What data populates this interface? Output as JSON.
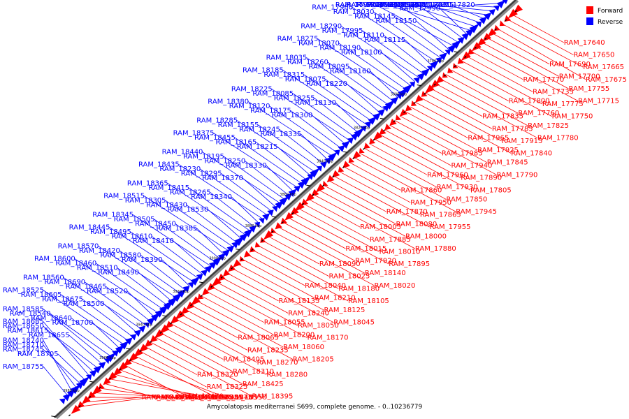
{
  "caption": "Amycolatopsis mediterranei S699, complete genome. - 0..10236779",
  "legend": [
    {
      "label": "Forward",
      "color": "#ff0000"
    },
    {
      "label": "Reverse",
      "color": "#0000ff"
    }
  ],
  "colors": {
    "forward": "#ff0000",
    "reverse": "#0000ff",
    "axis": "#555555",
    "tick": "#000000"
  },
  "ticks": [
    {
      "label": "3780 kbp",
      "pos": 0.125
    },
    {
      "label": "3800 kbp",
      "pos": 0.205
    },
    {
      "label": "3820 kbp",
      "pos": 0.285
    },
    {
      "label": "3840 kbp",
      "pos": 0.365
    },
    {
      "label": "3860 kbp",
      "pos": 0.445
    },
    {
      "label": "3880 kbp",
      "pos": 0.52
    },
    {
      "label": "3900 kbp",
      "pos": 0.598
    },
    {
      "label": "3920 kbp",
      "pos": 0.677
    },
    {
      "label": "3940 kbp",
      "pos": 0.757
    },
    {
      "label": "3960 kbp",
      "pos": 0.836
    },
    {
      "label": "3980 kbp",
      "pos": 0.915
    },
    {
      "label": "4000 kbp",
      "pos": 0.998
    }
  ],
  "reverse_labels": [
    "RAM_17820",
    "RAM_17855",
    "RAM_17765",
    "RAM_17815",
    "RAM_17830",
    "RAM_17905",
    "RAM_17875",
    "RAM_17910",
    "RAM_17990",
    "RAM_17975",
    "RAM_17935",
    "RAM_17970",
    "RAM_18150",
    "RAM_18145",
    "RAM_18030",
    "RAM_17980",
    "RAM_18115",
    "RAM_18110",
    "RAM_17995",
    "RAM_18290",
    "RAM_18100",
    "RAM_18190",
    "RAM_18070",
    "RAM_18275",
    "RAM_18160",
    "RAM_18095",
    "RAM_18260",
    "RAM_18035",
    "RAM_18220",
    "RAM_18075",
    "RAM_18315",
    "RAM_18185",
    "RAM_18130",
    "RAM_18255",
    "RAM_18085",
    "RAM_18225",
    "RAM_18300",
    "RAM_18175",
    "RAM_18120",
    "RAM_18380",
    "RAM_18335",
    "RAM_18245",
    "RAM_18155",
    "RAM_18285",
    "RAM_18215",
    "RAM_18165",
    "RAM_18455",
    "RAM_18375",
    "RAM_18330",
    "RAM_18250",
    "RAM_18195",
    "RAM_18440",
    "RAM_18370",
    "RAM_18295",
    "RAM_18230",
    "RAM_18435",
    "RAM_18340",
    "RAM_18265",
    "RAM_18415",
    "RAM_18365",
    "RAM_18530",
    "RAM_18430",
    "RAM_18305",
    "RAM_18515",
    "RAM_18385",
    "RAM_18450",
    "RAM_18505",
    "RAM_18345",
    "RAM_18410",
    "RAM_18610",
    "RAM_18495",
    "RAM_18445",
    "RAM_18390",
    "RAM_18580",
    "RAM_18420",
    "RAM_18570",
    "RAM_18490",
    "RAM_18510",
    "RAM_18460",
    "RAM_18600",
    "RAM_18520",
    "RAM_18465",
    "RAM_18690",
    "RAM_18560",
    "RAM_18500",
    "RAM_18675",
    "RAM_18605",
    "RAM_18525",
    "RAM_18700",
    "RAM_18640",
    "RAM_18540",
    "RAM_18585",
    "RAM_18655",
    "RAM_18615",
    "RAM_18650",
    "RAM_18685",
    "RAM_18705",
    "RAM_18745",
    "RAM_18710",
    "RAM_18740",
    "RAM_18755"
  ],
  "forward_labels": [
    "RAM_17640",
    "RAM_17650",
    "RAM_17665",
    "RAM_17675",
    "RAM_17690",
    "RAM_17700",
    "RAM_17755",
    "RAM_17715",
    "RAM_17770",
    "RAM_17735",
    "RAM_17775",
    "RAM_17750",
    "RAM_17800",
    "RAM_17760",
    "RAM_17825",
    "RAM_17780",
    "RAM_17835",
    "RAM_17785",
    "RAM_17915",
    "RAM_17840",
    "RAM_17965",
    "RAM_17925",
    "RAM_17845",
    "RAM_17790",
    "RAM_17985",
    "RAM_17940",
    "RAM_17890",
    "RAM_17805",
    "RAM_17960",
    "RAM_17930",
    "RAM_17850",
    "RAM_17945",
    "RAM_17860",
    "RAM_17950",
    "RAM_17865",
    "RAM_17955",
    "RAM_17870",
    "RAM_18080",
    "RAM_18000",
    "RAM_17880",
    "RAM_18005",
    "RAM_17885",
    "RAM_18010",
    "RAM_17895",
    "RAM_18015",
    "RAM_17920",
    "RAM_18140",
    "RAM_18020",
    "RAM_18090",
    "RAM_18025",
    "RAM_18180",
    "RAM_18105",
    "RAM_18040",
    "RAM_18210",
    "RAM_18125",
    "RAM_18045",
    "RAM_18135",
    "RAM_18240",
    "RAM_18050",
    "RAM_18170",
    "RAM_18055",
    "RAM_18200",
    "RAM_18060",
    "RAM_18205",
    "RAM_18065",
    "RAM_18235",
    "RAM_18270",
    "RAM_18280",
    "RAM_18405",
    "RAM_18310",
    "RAM_18425",
    "RAM_18395",
    "RAM_18320",
    "RAM_18325",
    "RAM_18485",
    "RAM_18350",
    "RAM_18470",
    "RAM_18535",
    "RAM_18355",
    "RAM_18475",
    "RAM_18360",
    "RAM_18480",
    "RAM_18400",
    "RAM_18635",
    "RAM_18545",
    "RAM_18550"
  ]
}
